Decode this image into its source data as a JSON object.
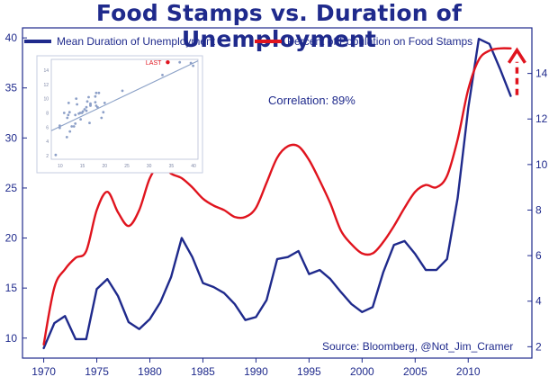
{
  "chart_data": [
    {
      "type": "line",
      "title": "Food Stamps vs. Duration of Unemployment",
      "annotation": "Correlation: 89%",
      "source": "Source: Bloomberg, @Not_Jim_Cramer",
      "x_ticks": [
        "1970",
        "1975",
        "1980",
        "1985",
        "1990",
        "1995",
        "2000",
        "2005",
        "2010"
      ],
      "xlim": [
        1968,
        2016
      ],
      "left_axis": {
        "ylim": [
          8,
          41
        ],
        "ticks": [
          "10",
          "15",
          "20",
          "25",
          "30",
          "35",
          "40"
        ]
      },
      "right_axis": {
        "ylim": [
          1.5,
          16
        ],
        "ticks": [
          "2",
          "4",
          "6",
          "8",
          "10",
          "12",
          "14"
        ]
      },
      "grid": false,
      "legend_position": "top",
      "series": [
        {
          "name": "Mean Duration of Unemployment",
          "axis": "left",
          "color": "#1f2a8c",
          "x": [
            1970,
            1971,
            1972,
            1973,
            1974,
            1975,
            1976,
            1977,
            1978,
            1979,
            1980,
            1981,
            1982,
            1983,
            1984,
            1985,
            1986,
            1987,
            1988,
            1989,
            1990,
            1991,
            1992,
            1993,
            1994,
            1995,
            1996,
            1997,
            1998,
            1999,
            2000,
            2001,
            2002,
            2003,
            2004,
            2005,
            2006,
            2007,
            2008,
            2009,
            2010,
            2011,
            2012,
            2013,
            2014
          ],
          "y": [
            9,
            11.5,
            12.2,
            9.9,
            9.9,
            14.9,
            15.9,
            14.2,
            11.6,
            10.9,
            11.9,
            13.6,
            16.1,
            20,
            18.1,
            15.5,
            15.1,
            14.5,
            13.4,
            11.8,
            12.1,
            13.8,
            17.9,
            18.1,
            18.7,
            16.4,
            16.8,
            15.9,
            14.6,
            13.4,
            12.6,
            13.1,
            16.6,
            19.3,
            19.7,
            18.4,
            16.8,
            16.8,
            17.9,
            24,
            33,
            39.9,
            39.4,
            36.9,
            34.2
          ]
        },
        {
          "name": "Percent of Population on Food Stamps",
          "axis": "right",
          "color": "#e0141e",
          "x": [
            1970,
            1971,
            1972,
            1973,
            1974,
            1975,
            1976,
            1977,
            1978,
            1979,
            1980,
            1981,
            1982,
            1983,
            1984,
            1985,
            1986,
            1987,
            1988,
            1989,
            1990,
            1991,
            1992,
            1993,
            1994,
            1995,
            1996,
            1997,
            1998,
            1999,
            2000,
            2001,
            2002,
            2003,
            2004,
            2005,
            2006,
            2007,
            2008,
            2009,
            2010,
            2011,
            2012,
            2013,
            2014
          ],
          "y": [
            2.1,
            4.6,
            5.4,
            5.9,
            6.2,
            8,
            8.8,
            7.9,
            7.3,
            8,
            9.4,
            10,
            9.6,
            9.4,
            9,
            8.5,
            8.2,
            8,
            7.7,
            7.7,
            8.1,
            9.2,
            10.3,
            10.8,
            10.8,
            10.2,
            9.3,
            8.3,
            7.1,
            6.5,
            6.1,
            6.1,
            6.6,
            7.3,
            8.1,
            8.8,
            9.1,
            9,
            9.5,
            11.1,
            13.3,
            14.6,
            15,
            15.1,
            15.1
          ]
        }
      ],
      "arrow": {
        "direction": "up",
        "color": "#e0141e",
        "style": "dashed"
      }
    },
    {
      "type": "scatter",
      "label": "LAST",
      "x_ticks": [
        "10",
        "15",
        "20",
        "25",
        "30",
        "35",
        "40"
      ],
      "y_ticks": [
        "2",
        "4",
        "6",
        "8",
        "10",
        "12",
        "14"
      ],
      "xlim": [
        8,
        41
      ],
      "ylim": [
        1.5,
        15.5
      ],
      "point_color": "#8da0c8",
      "last_color": "#e0141e",
      "trend_color": "#8aa0c6",
      "trendline": {
        "x": [
          8,
          41
        ],
        "y": [
          5.5,
          15.3
        ]
      },
      "last_point": {
        "x": 34.2,
        "y": 15.1
      },
      "x": [
        9,
        9.9,
        9.9,
        10.9,
        11.5,
        11.6,
        11.9,
        11.8,
        12.1,
        12.2,
        12.6,
        13.1,
        13.4,
        13.4,
        13.6,
        13.8,
        14.2,
        14.5,
        14.6,
        14.9,
        15.1,
        15.5,
        15.9,
        15.9,
        16.1,
        16.4,
        16.6,
        16.8,
        16.8,
        16.8,
        17.9,
        17.9,
        18.1,
        18.1,
        18.4,
        18.7,
        19.3,
        19.7,
        20,
        24,
        33,
        39.9,
        39.4,
        36.9
      ],
      "y": [
        2.1,
        6.2,
        5.9,
        8,
        4.6,
        7.3,
        9.4,
        7.7,
        8.1,
        5.4,
        6.1,
        6.1,
        7.7,
        6.5,
        10,
        9.2,
        7.9,
        8,
        7.1,
        8,
        8.2,
        8.5,
        8.8,
        8.3,
        9.6,
        10.2,
        6.6,
        9.3,
        9.1,
        9,
        10.3,
        9.5,
        10.8,
        9,
        8.8,
        10.8,
        7.3,
        8.1,
        9.4,
        11.1,
        13.3,
        14.6,
        15,
        15.1
      ]
    }
  ]
}
